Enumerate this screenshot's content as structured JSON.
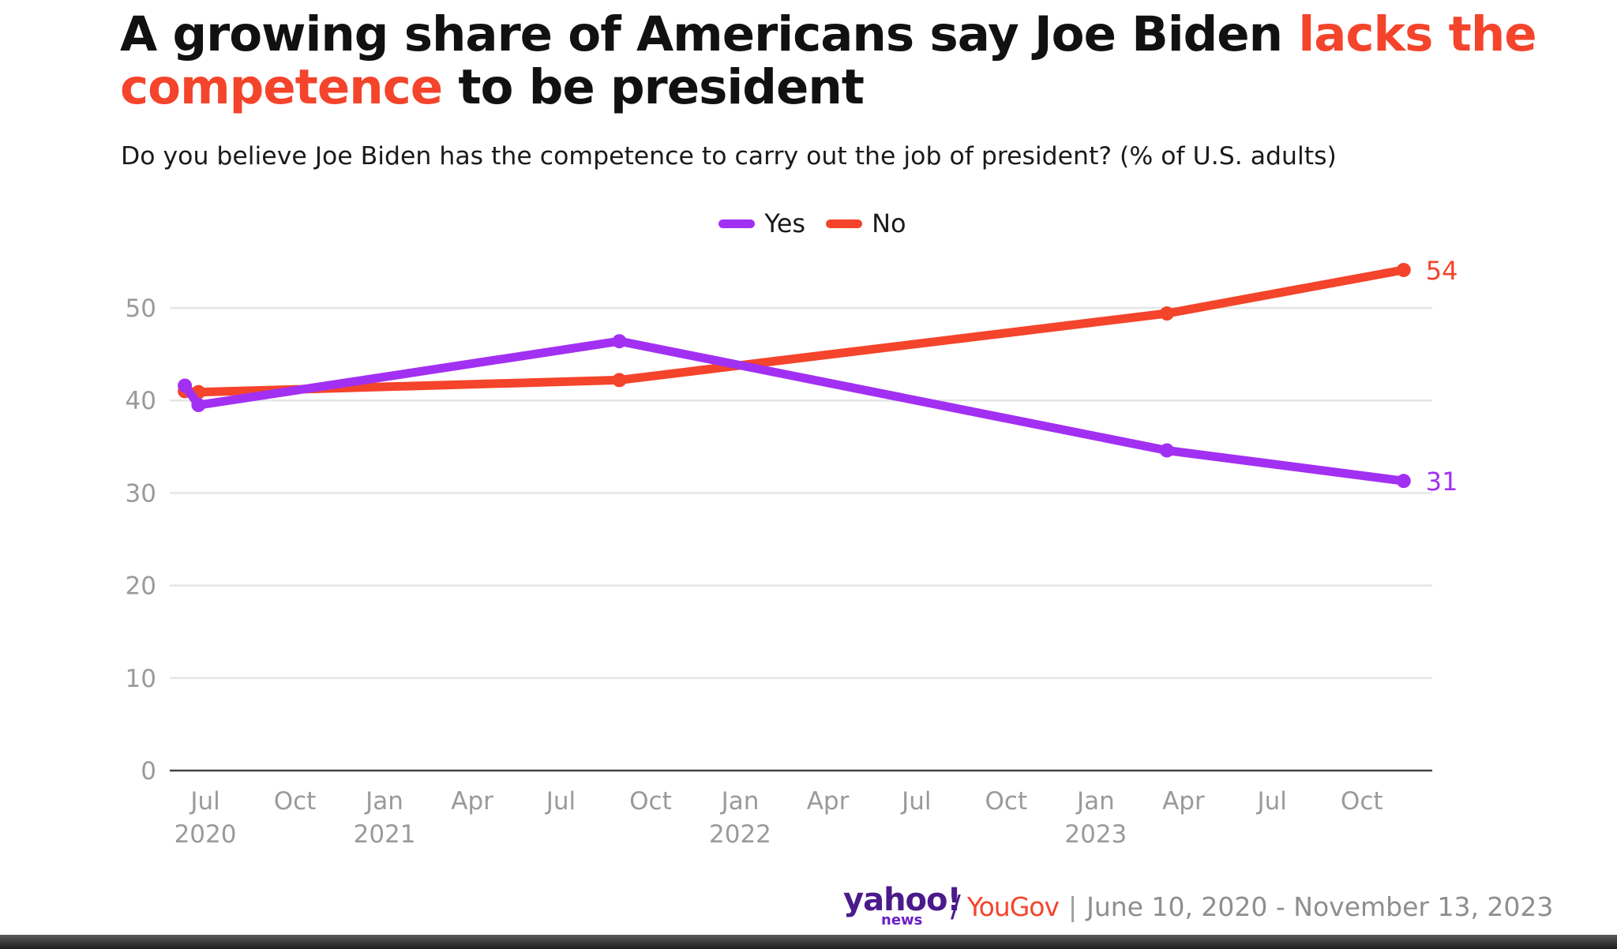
{
  "title_parts": {
    "part1": "A growing share of Americans say Joe Biden ",
    "highlight": "lacks the competence",
    "part2": " to be president"
  },
  "subtitle": "Do you believe Joe Biden has the competence to carry out the job of president? (% of U.S. adults)",
  "colors": {
    "yes": "#a230f2",
    "no": "#f4442b",
    "grid": "#e6e6e6",
    "axis": "#444444",
    "tick": "#9a9a9a"
  },
  "chart_data": {
    "type": "line",
    "title": "A growing share of Americans say Joe Biden lacks the competence to be president",
    "subtitle": "Do you believe Joe Biden has the competence to carry out the job of president? (% of U.S. adults)",
    "xlabel": "",
    "ylabel": "",
    "ylim": [
      0,
      54
    ],
    "yticks": [
      0,
      10,
      20,
      30,
      40,
      50
    ],
    "xticks": [
      {
        "date": "2020-07-01",
        "label": "Jul",
        "sub": "2020"
      },
      {
        "date": "2020-10-01",
        "label": "Oct",
        "sub": ""
      },
      {
        "date": "2021-01-01",
        "label": "Jan",
        "sub": "2021"
      },
      {
        "date": "2021-04-01",
        "label": "Apr",
        "sub": ""
      },
      {
        "date": "2021-07-01",
        "label": "Jul",
        "sub": ""
      },
      {
        "date": "2021-10-01",
        "label": "Oct",
        "sub": ""
      },
      {
        "date": "2022-01-01",
        "label": "Jan",
        "sub": "2022"
      },
      {
        "date": "2022-04-01",
        "label": "Apr",
        "sub": ""
      },
      {
        "date": "2022-07-01",
        "label": "Jul",
        "sub": ""
      },
      {
        "date": "2022-10-01",
        "label": "Oct",
        "sub": ""
      },
      {
        "date": "2023-01-01",
        "label": "Jan",
        "sub": "2023"
      },
      {
        "date": "2023-04-01",
        "label": "Apr",
        "sub": ""
      },
      {
        "date": "2023-07-01",
        "label": "Jul",
        "sub": ""
      },
      {
        "date": "2023-10-01",
        "label": "Oct",
        "sub": ""
      }
    ],
    "legend": [
      "Yes",
      "No"
    ],
    "legend_position": "top-center",
    "grid": true,
    "series": [
      {
        "name": "Yes",
        "key": "yes",
        "end_label": "31",
        "points": [
          {
            "date": "2020-06-10",
            "value": 41.6
          },
          {
            "date": "2020-06-24",
            "value": 39.5
          },
          {
            "date": "2021-08-30",
            "value": 46.4
          },
          {
            "date": "2023-03-15",
            "value": 34.6
          },
          {
            "date": "2023-11-13",
            "value": 31.3
          }
        ]
      },
      {
        "name": "No",
        "key": "no",
        "end_label": "54",
        "points": [
          {
            "date": "2020-06-10",
            "value": 41.0
          },
          {
            "date": "2020-06-24",
            "value": 40.9
          },
          {
            "date": "2021-08-30",
            "value": 42.2
          },
          {
            "date": "2023-03-15",
            "value": 49.4
          },
          {
            "date": "2023-11-13",
            "value": 54.1
          }
        ]
      }
    ]
  },
  "source": {
    "yahoo": "yahoo!",
    "news": "news",
    "slash": "/",
    "yougov": "YouGov",
    "separator": "|",
    "date_range": "June 10, 2020 - November 13, 2023"
  }
}
